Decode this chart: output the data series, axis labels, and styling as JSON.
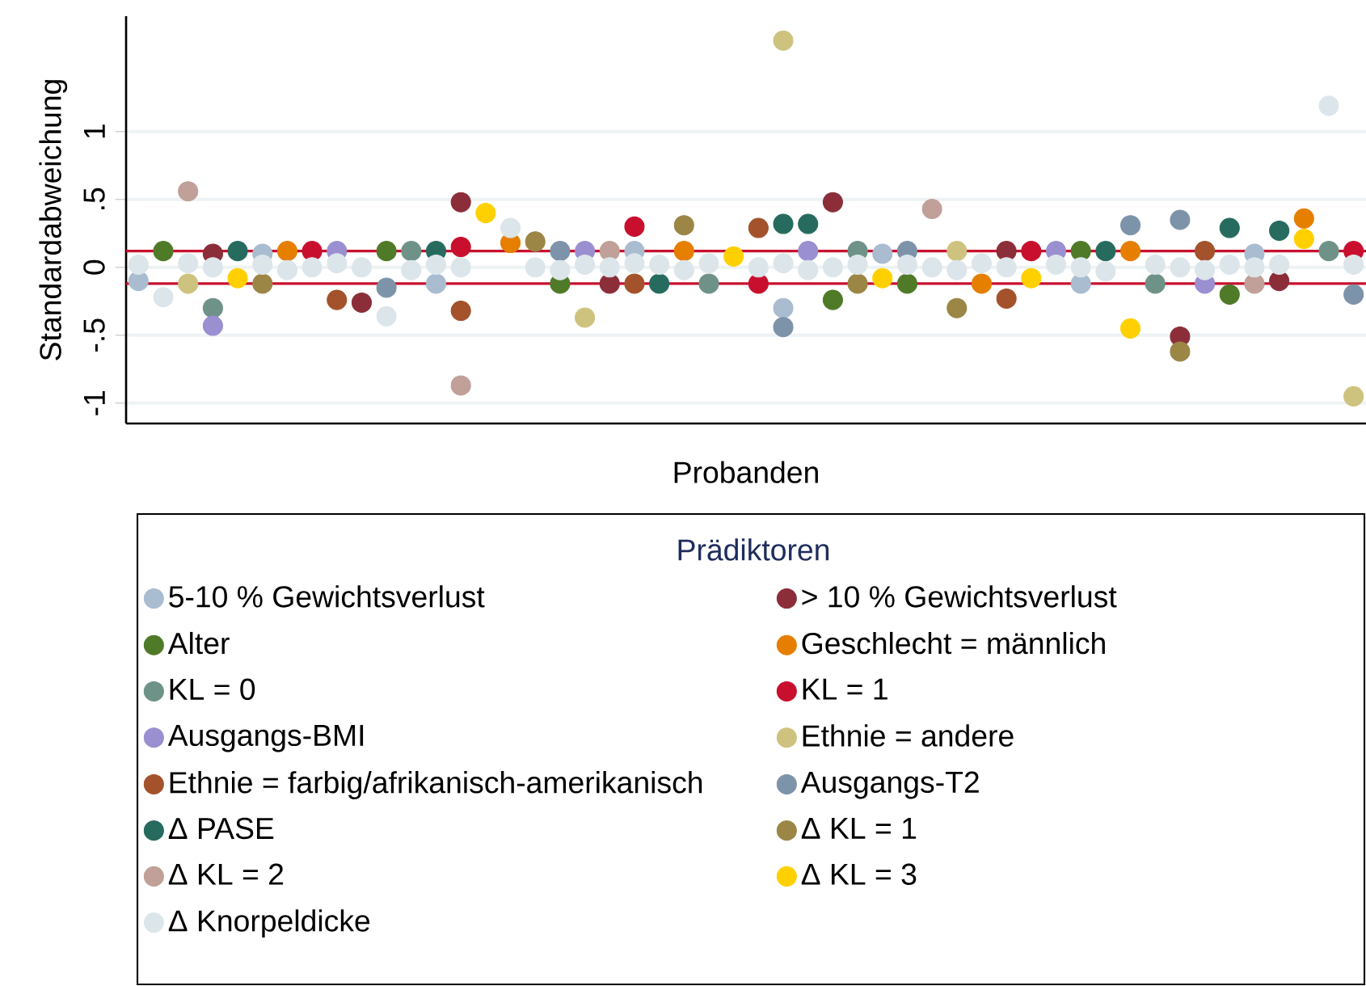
{
  "chart_data": {
    "type": "scatter",
    "xlabel": "Probanden",
    "ylabel": "Standardabweichung",
    "legend_title": "Prädiktoren",
    "categories": [
      null,
      null,
      null,
      null,
      null,
      null,
      null,
      null,
      null,
      null,
      null,
      null,
      null,
      null,
      null,
      null,
      null,
      null,
      null,
      null,
      null,
      null,
      null,
      null,
      null,
      null,
      null,
      null,
      null,
      null,
      null,
      null,
      null,
      null,
      null,
      null,
      null,
      null,
      null,
      null,
      null,
      null,
      null,
      null,
      null,
      null,
      null,
      null,
      null,
      null
    ],
    "ylim": [
      -1.15,
      1.85
    ],
    "yticks": [
      {
        "value": -1,
        "label": "-1"
      },
      {
        "value": -0.5,
        "label": "-.5"
      },
      {
        "value": 0,
        "label": "0"
      },
      {
        "value": 0.5,
        "label": ".5"
      },
      {
        "value": 1,
        "label": "1"
      }
    ],
    "grid": "y",
    "legend": "bottom",
    "marker": "circle",
    "ref_lines": [
      {
        "axis": "y",
        "value": 0.12,
        "color": "#c8102e"
      },
      {
        "axis": "y",
        "value": -0.12,
        "color": "#c8102e"
      }
    ],
    "series": [
      {
        "name": "5-10 % Gewichtsverlust",
        "color": "#a9bcd0",
        "values": [
          -0.1,
          null,
          null,
          null,
          null,
          0.1,
          null,
          null,
          null,
          null,
          null,
          null,
          -0.12,
          null,
          null,
          null,
          null,
          null,
          null,
          null,
          0.12,
          null,
          null,
          null,
          null,
          null,
          -0.3,
          null,
          null,
          null,
          0.1,
          null,
          null,
          null,
          null,
          null,
          null,
          null,
          -0.12,
          null,
          null,
          null,
          null,
          null,
          null,
          0.1,
          null,
          null,
          null,
          null
        ]
      },
      {
        "name": "> 10 % Gewichtsverlust",
        "color": "#8b2e3a",
        "values": [
          null,
          null,
          null,
          0.1,
          null,
          null,
          null,
          null,
          null,
          -0.26,
          null,
          null,
          null,
          0.48,
          null,
          null,
          null,
          null,
          null,
          -0.12,
          null,
          null,
          null,
          null,
          null,
          null,
          null,
          null,
          0.48,
          null,
          null,
          null,
          null,
          null,
          null,
          0.12,
          null,
          null,
          null,
          null,
          null,
          null,
          -0.51,
          null,
          null,
          null,
          -0.1,
          null,
          null,
          null
        ]
      },
      {
        "name": "Alter",
        "color": "#4f7a28",
        "values": [
          null,
          0.12,
          null,
          null,
          null,
          null,
          null,
          null,
          null,
          null,
          0.12,
          null,
          null,
          null,
          null,
          null,
          null,
          -0.12,
          null,
          null,
          null,
          null,
          null,
          null,
          null,
          null,
          null,
          null,
          -0.24,
          null,
          null,
          -0.12,
          null,
          null,
          null,
          null,
          null,
          null,
          0.12,
          null,
          null,
          null,
          null,
          null,
          -0.2,
          null,
          null,
          null,
          null,
          null
        ]
      },
      {
        "name": "Geschlecht = männlich",
        "color": "#e67e00",
        "values": [
          null,
          null,
          null,
          null,
          null,
          null,
          0.12,
          null,
          null,
          null,
          null,
          null,
          null,
          null,
          null,
          0.18,
          null,
          null,
          null,
          null,
          null,
          null,
          0.12,
          null,
          null,
          null,
          null,
          null,
          null,
          null,
          null,
          null,
          null,
          null,
          -0.12,
          null,
          null,
          null,
          null,
          null,
          0.12,
          null,
          null,
          null,
          null,
          null,
          null,
          0.36,
          null,
          null
        ]
      },
      {
        "name": "KL = 0",
        "color": "#6f9288",
        "values": [
          null,
          null,
          null,
          -0.3,
          null,
          null,
          null,
          null,
          null,
          null,
          null,
          0.12,
          null,
          null,
          null,
          null,
          null,
          null,
          null,
          null,
          null,
          null,
          null,
          -0.12,
          null,
          null,
          null,
          null,
          null,
          0.12,
          null,
          null,
          null,
          null,
          null,
          null,
          null,
          null,
          null,
          null,
          null,
          -0.12,
          null,
          null,
          null,
          null,
          null,
          null,
          0.12,
          null
        ]
      },
      {
        "name": "KL = 1",
        "color": "#c8102e",
        "values": [
          null,
          null,
          null,
          null,
          null,
          null,
          null,
          0.12,
          null,
          null,
          null,
          null,
          null,
          0.15,
          null,
          null,
          null,
          null,
          null,
          null,
          0.3,
          null,
          null,
          null,
          null,
          -0.12,
          null,
          null,
          null,
          null,
          null,
          null,
          null,
          null,
          null,
          null,
          0.12,
          null,
          null,
          null,
          null,
          null,
          null,
          null,
          null,
          null,
          null,
          null,
          null,
          0.12
        ]
      },
      {
        "name": "Ausgangs-BMI",
        "color": "#9a8fd0",
        "values": [
          null,
          null,
          null,
          -0.43,
          null,
          null,
          null,
          null,
          0.12,
          null,
          null,
          null,
          null,
          null,
          null,
          null,
          null,
          null,
          0.12,
          null,
          null,
          null,
          null,
          null,
          null,
          null,
          null,
          0.12,
          null,
          null,
          null,
          null,
          null,
          null,
          null,
          null,
          null,
          0.12,
          null,
          null,
          null,
          null,
          null,
          -0.12,
          null,
          null,
          null,
          null,
          null,
          null
        ]
      },
      {
        "name": "Ethnie = andere",
        "color": "#cdc37e",
        "values": [
          null,
          null,
          -0.12,
          null,
          null,
          null,
          null,
          null,
          null,
          null,
          null,
          null,
          null,
          null,
          null,
          null,
          null,
          null,
          -0.37,
          null,
          null,
          null,
          null,
          null,
          null,
          null,
          1.67,
          null,
          null,
          null,
          null,
          null,
          null,
          0.12,
          null,
          null,
          null,
          null,
          null,
          null,
          null,
          null,
          null,
          null,
          null,
          null,
          null,
          null,
          null,
          -0.95
        ]
      },
      {
        "name": "Ethnie = farbig/afrikanisch-amerikanisch",
        "color": "#a3522b",
        "values": [
          null,
          null,
          null,
          null,
          null,
          null,
          null,
          null,
          -0.24,
          null,
          null,
          null,
          null,
          -0.32,
          null,
          null,
          null,
          null,
          null,
          null,
          -0.12,
          null,
          null,
          null,
          null,
          0.29,
          null,
          null,
          null,
          null,
          null,
          null,
          null,
          null,
          null,
          -0.23,
          null,
          null,
          null,
          null,
          null,
          null,
          null,
          0.12,
          null,
          null,
          null,
          null,
          null,
          null
        ]
      },
      {
        "name": "Ausgangs-T2",
        "color": "#7d93aa",
        "values": [
          null,
          null,
          null,
          null,
          null,
          null,
          null,
          null,
          null,
          null,
          -0.15,
          null,
          null,
          null,
          null,
          null,
          null,
          0.12,
          null,
          null,
          null,
          null,
          null,
          null,
          null,
          null,
          -0.44,
          null,
          null,
          null,
          null,
          0.12,
          null,
          null,
          null,
          null,
          null,
          null,
          null,
          null,
          0.31,
          null,
          0.35,
          null,
          null,
          null,
          null,
          null,
          null,
          -0.2
        ]
      },
      {
        "name": "Δ PASE",
        "color": "#276b5f",
        "values": [
          null,
          null,
          null,
          null,
          0.12,
          null,
          null,
          null,
          null,
          null,
          null,
          null,
          0.12,
          null,
          null,
          null,
          null,
          null,
          null,
          null,
          null,
          -0.12,
          null,
          null,
          null,
          null,
          0.32,
          0.32,
          null,
          null,
          null,
          null,
          null,
          null,
          null,
          null,
          null,
          null,
          null,
          0.12,
          null,
          null,
          null,
          null,
          0.29,
          null,
          0.27,
          null,
          null,
          null
        ]
      },
      {
        "name": "Δ KL = 1",
        "color": "#9b8646",
        "values": [
          null,
          null,
          null,
          null,
          null,
          -0.12,
          null,
          null,
          null,
          null,
          null,
          null,
          null,
          null,
          null,
          null,
          0.19,
          null,
          null,
          null,
          null,
          null,
          0.31,
          null,
          null,
          null,
          null,
          null,
          null,
          -0.12,
          null,
          null,
          null,
          -0.3,
          null,
          null,
          null,
          null,
          null,
          null,
          null,
          null,
          -0.62,
          null,
          null,
          null,
          null,
          null,
          null,
          null
        ]
      },
      {
        "name": "Δ KL = 2",
        "color": "#c0a098",
        "values": [
          null,
          null,
          0.56,
          null,
          null,
          null,
          null,
          null,
          null,
          null,
          null,
          null,
          null,
          -0.87,
          null,
          null,
          null,
          null,
          null,
          0.12,
          null,
          null,
          null,
          null,
          null,
          null,
          null,
          null,
          null,
          null,
          null,
          null,
          0.43,
          null,
          null,
          null,
          null,
          null,
          null,
          null,
          null,
          null,
          null,
          null,
          null,
          -0.12,
          null,
          null,
          null,
          null
        ]
      },
      {
        "name": "Δ KL = 3",
        "color": "#ffd000",
        "values": [
          null,
          null,
          null,
          null,
          -0.08,
          null,
          null,
          null,
          null,
          null,
          null,
          null,
          null,
          null,
          0.4,
          null,
          null,
          null,
          null,
          null,
          null,
          null,
          null,
          null,
          0.08,
          null,
          null,
          null,
          null,
          null,
          -0.08,
          null,
          null,
          null,
          null,
          null,
          -0.08,
          null,
          null,
          null,
          -0.45,
          null,
          null,
          null,
          null,
          null,
          null,
          0.21,
          null,
          null
        ]
      },
      {
        "name": "Δ Knorpeldicke",
        "color": "#dce6ea",
        "values": [
          0.02,
          -0.22,
          0.03,
          0.0,
          null,
          0.02,
          -0.02,
          0.0,
          0.03,
          0.0,
          -0.36,
          -0.02,
          0.02,
          0.0,
          null,
          0.29,
          0.0,
          -0.02,
          0.02,
          0.0,
          0.03,
          0.02,
          -0.02,
          0.03,
          null,
          0.0,
          0.03,
          -0.02,
          0.0,
          0.02,
          null,
          0.02,
          0.0,
          -0.02,
          0.03,
          0.0,
          null,
          0.02,
          0.0,
          -0.03,
          null,
          0.02,
          0.0,
          -0.02,
          0.02,
          0.0,
          0.02,
          null,
          1.19,
          0.02
        ]
      }
    ]
  }
}
